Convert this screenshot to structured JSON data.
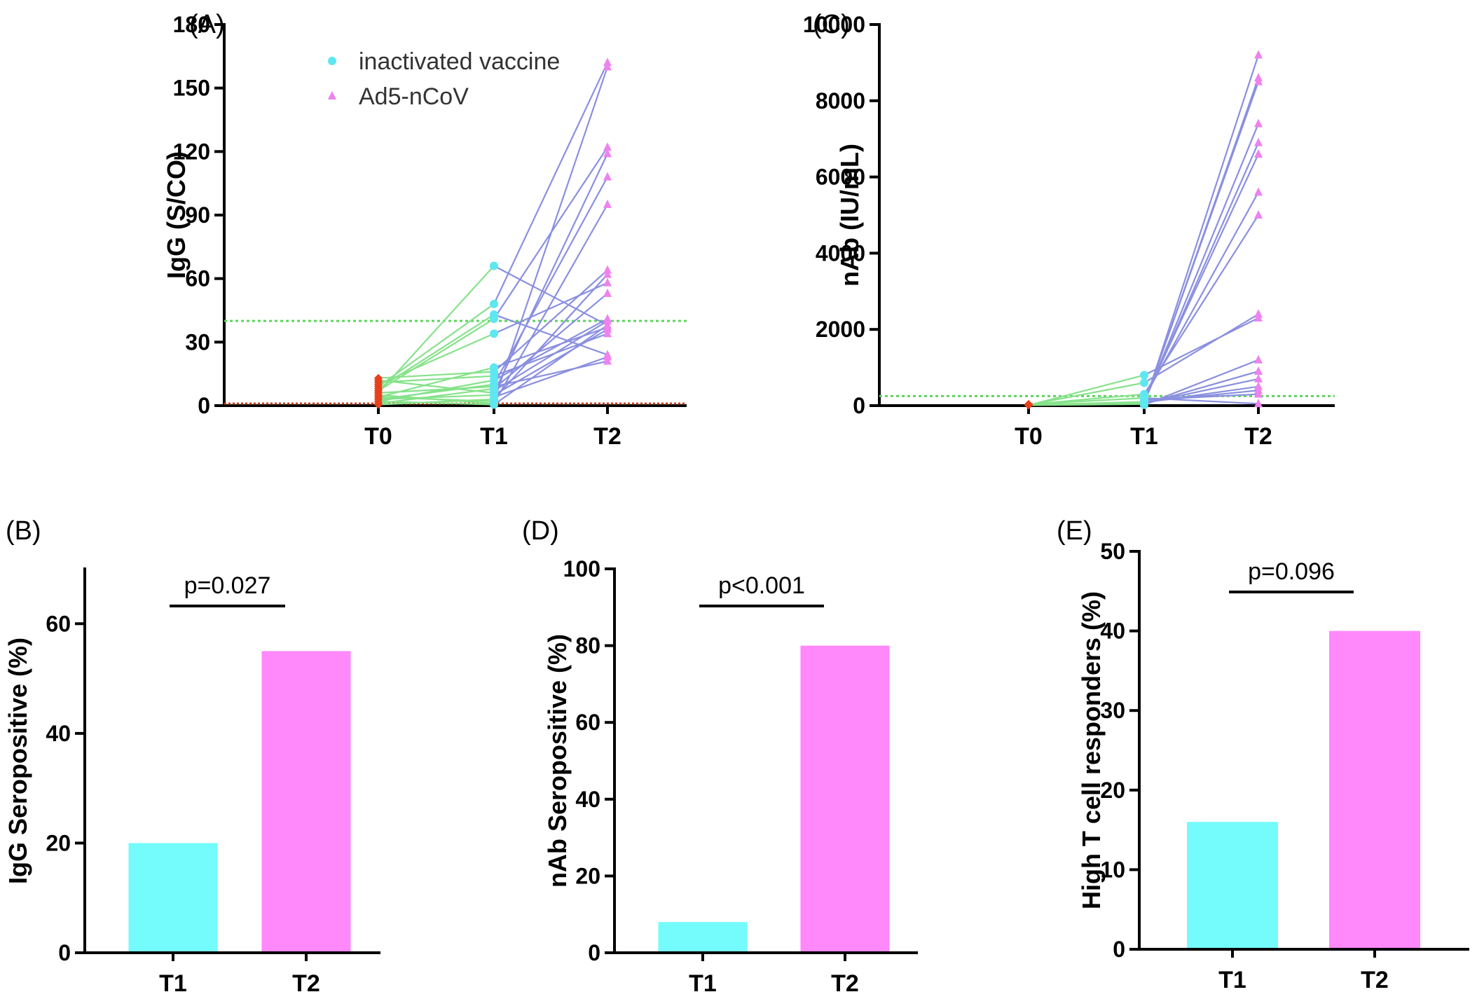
{
  "chart_data": [
    {
      "panel_label": "(A)",
      "type": "line",
      "ylabel": "IgG (S/CO)",
      "categories": [
        "T0",
        "T1",
        "T2"
      ],
      "ylim": [
        0,
        180
      ],
      "yticks": [
        "0",
        "30",
        "60",
        "90",
        "120",
        "150",
        "180"
      ],
      "threshold": 40,
      "baseline_value": 1,
      "legend": [
        {
          "name": "inactivated vaccine",
          "marker": "circle",
          "color": "#5ee7f0"
        },
        {
          "name": "Ad5-nCoV",
          "marker": "triangle",
          "color": "#ee82ee"
        }
      ],
      "t0_values": [
        0.5,
        1,
        2,
        3,
        4,
        5,
        6,
        7,
        8,
        9,
        10,
        11,
        12,
        13
      ],
      "t1_values": [
        0.5,
        1,
        2,
        3,
        4,
        5,
        6,
        7,
        8,
        9,
        10,
        12,
        14,
        16,
        18,
        34,
        41,
        43,
        48,
        66
      ],
      "t2_values": [
        21,
        23,
        24,
        34,
        36,
        37,
        38,
        40,
        41,
        53,
        58,
        62,
        64,
        95,
        108,
        119,
        122,
        160,
        162
      ],
      "t0_t1_pairs": [
        [
          0.5,
          3
        ],
        [
          1,
          8
        ],
        [
          2,
          12
        ],
        [
          3,
          10
        ],
        [
          4,
          18
        ],
        [
          5,
          1
        ],
        [
          6,
          66
        ],
        [
          7,
          41
        ],
        [
          8,
          43
        ],
        [
          9,
          48
        ],
        [
          10,
          34
        ],
        [
          11,
          14
        ],
        [
          12,
          6
        ],
        [
          13,
          16
        ],
        [
          3,
          5
        ],
        [
          6,
          9
        ],
        [
          2,
          0.5
        ],
        [
          4,
          2
        ]
      ],
      "t1_t2_pairs": [
        [
          0.5,
          38
        ],
        [
          1,
          95
        ],
        [
          2,
          160
        ],
        [
          3,
          62
        ],
        [
          4,
          23
        ],
        [
          5,
          36
        ],
        [
          6,
          119
        ],
        [
          7,
          40
        ],
        [
          8,
          53
        ],
        [
          9,
          21
        ],
        [
          10,
          108
        ],
        [
          12,
          41
        ],
        [
          14,
          34
        ],
        [
          16,
          64
        ],
        [
          18,
          37
        ],
        [
          34,
          58
        ],
        [
          41,
          122
        ],
        [
          43,
          24
        ],
        [
          48,
          162
        ],
        [
          66,
          38
        ]
      ]
    },
    {
      "panel_label": "(C)",
      "type": "line",
      "ylabel": "nAb (IU/mL)",
      "categories": [
        "T0",
        "T1",
        "T2"
      ],
      "ylim": [
        0,
        10000
      ],
      "yticks": [
        "0",
        "2000",
        "4000",
        "6000",
        "8000",
        "10000"
      ],
      "threshold": 250,
      "t0_values": [
        10,
        20,
        30,
        40
      ],
      "t1_values": [
        20,
        40,
        60,
        80,
        100,
        150,
        200,
        300,
        600,
        800
      ],
      "t2_values": [
        50,
        300,
        400,
        500,
        700,
        900,
        1200,
        2300,
        2400,
        5000,
        5600,
        6600,
        6900,
        7400,
        8500,
        8600,
        9200
      ],
      "t0_t1_pairs": [
        [
          10,
          800
        ],
        [
          20,
          600
        ],
        [
          30,
          300
        ],
        [
          40,
          200
        ],
        [
          20,
          100
        ],
        [
          30,
          60
        ],
        [
          10,
          40
        ]
      ],
      "t1_t2_pairs": [
        [
          20,
          9200
        ],
        [
          40,
          8600
        ],
        [
          60,
          8500
        ],
        [
          80,
          7400
        ],
        [
          100,
          6900
        ],
        [
          150,
          6600
        ],
        [
          200,
          5600
        ],
        [
          300,
          5000
        ],
        [
          600,
          2400
        ],
        [
          800,
          2300
        ],
        [
          20,
          1200
        ],
        [
          40,
          900
        ],
        [
          60,
          700
        ],
        [
          80,
          500
        ],
        [
          100,
          400
        ],
        [
          150,
          300
        ],
        [
          200,
          50
        ]
      ]
    },
    {
      "panel_label": "(B)",
      "type": "bar",
      "ylabel": "IgG Seropositive (%)",
      "categories": [
        "T1",
        "T2"
      ],
      "values": [
        20,
        55
      ],
      "colors": [
        "#74fbfc",
        "#ff88fb"
      ],
      "ylim": [
        0,
        70
      ],
      "yticks": [
        "0",
        "20",
        "40",
        "60"
      ],
      "annotation": "p=0.027"
    },
    {
      "panel_label": "(D)",
      "type": "bar",
      "ylabel": "nAb Seropositive (%)",
      "categories": [
        "T1",
        "T2"
      ],
      "values": [
        8,
        80
      ],
      "colors": [
        "#74fbfc",
        "#ff88fb"
      ],
      "ylim": [
        0,
        100
      ],
      "yticks": [
        "0",
        "20",
        "40",
        "60",
        "80",
        "100"
      ],
      "annotation": "p<0.001"
    },
    {
      "panel_label": "(E)",
      "type": "bar",
      "ylabel": "High T cell responders (%)",
      "categories": [
        "T1",
        "T2"
      ],
      "values": [
        16,
        40
      ],
      "colors": [
        "#74fbfc",
        "#ff88fb"
      ],
      "ylim": [
        0,
        50
      ],
      "yticks": [
        "0",
        "10",
        "20",
        "30",
        "40",
        "50"
      ],
      "annotation": "p=0.096"
    }
  ],
  "colors": {
    "t0_marker": "#e8401c",
    "t1_marker": "#5ee7f0",
    "t2_marker": "#ee82ee",
    "line_t0_t1": "#86e28a",
    "line_t1_t2": "#8a8fe0",
    "threshold_line": "#5fd35f",
    "baseline_line": "#c8401c"
  }
}
